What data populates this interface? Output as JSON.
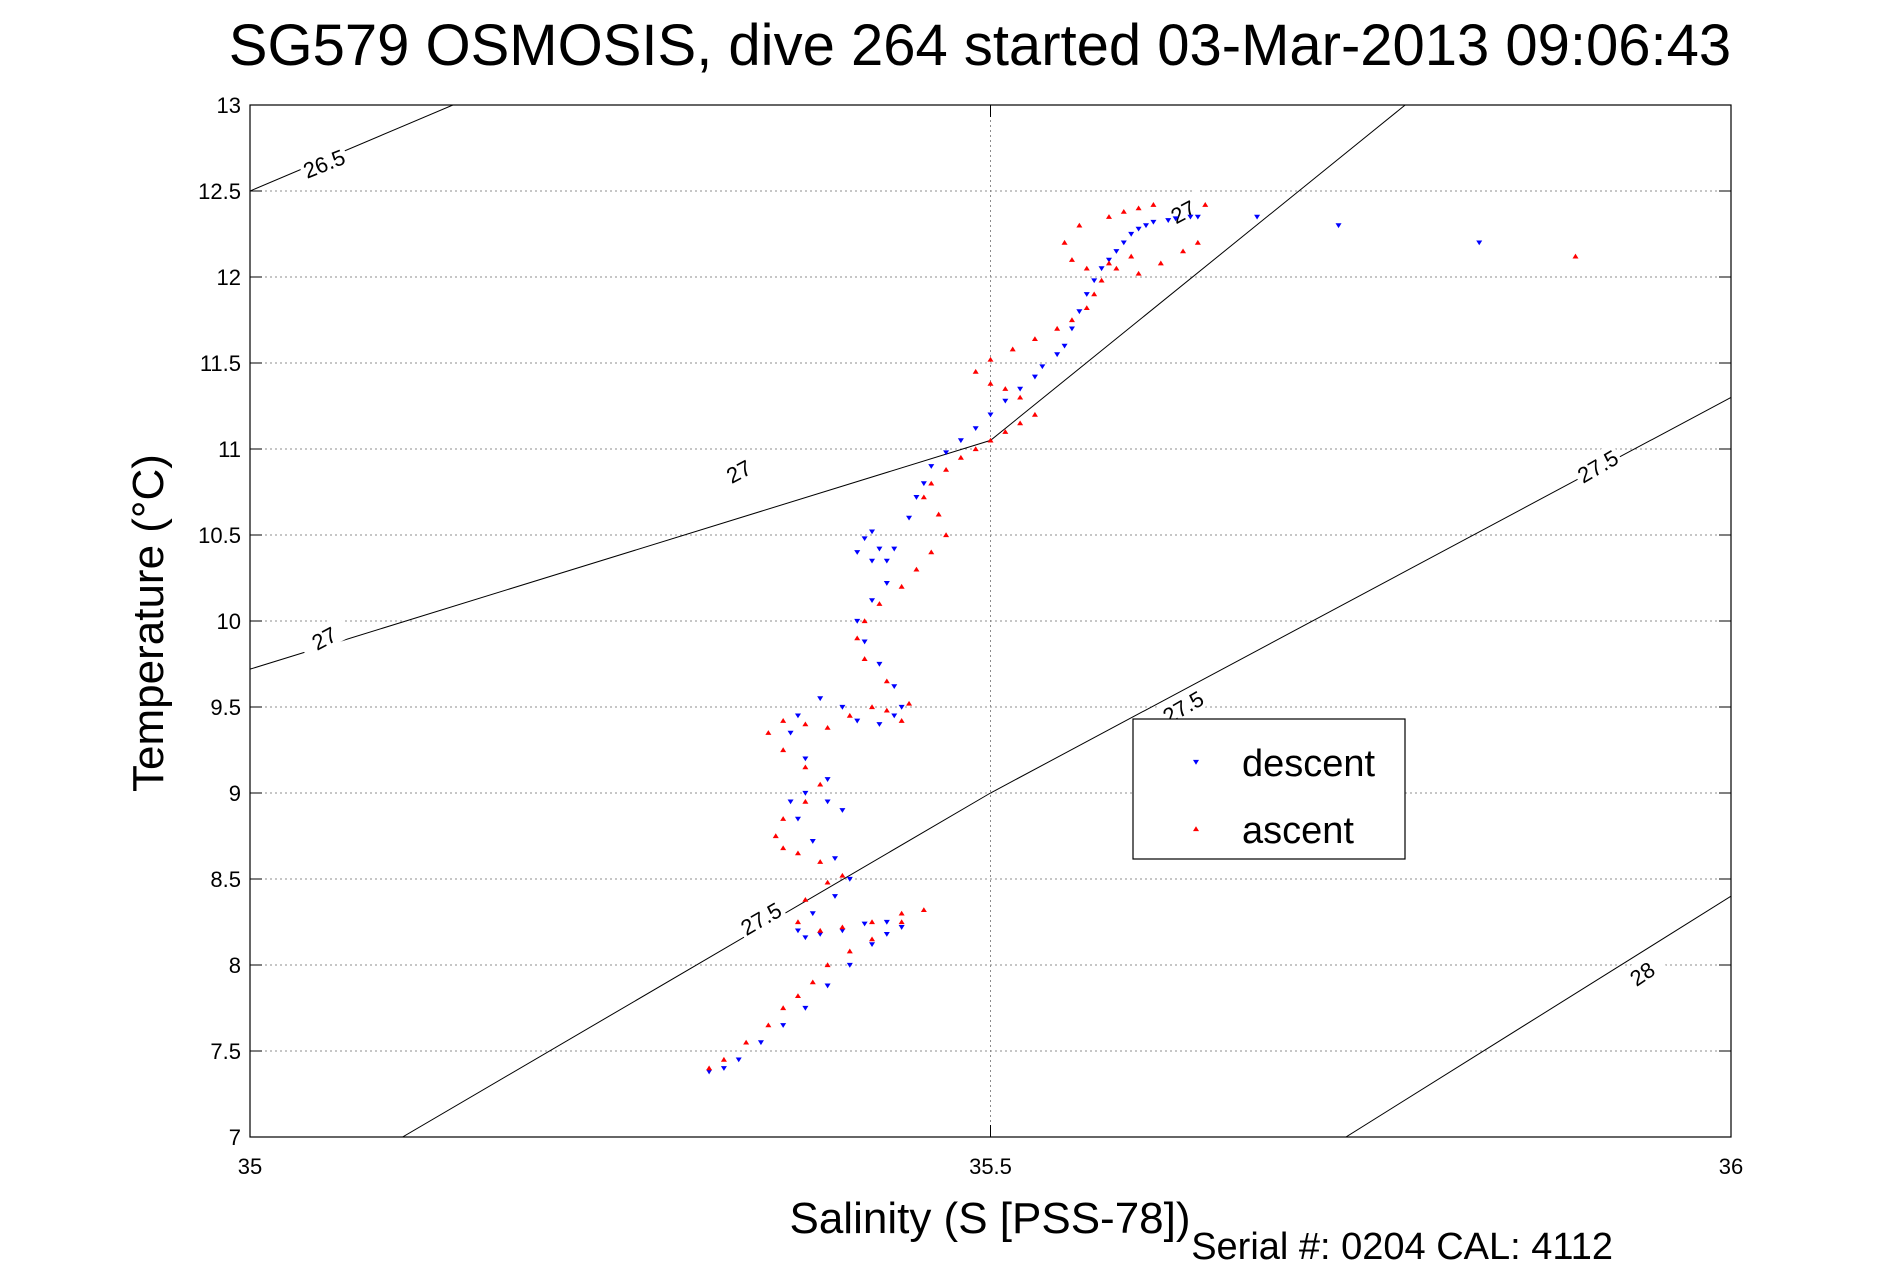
{
  "chart_data": {
    "type": "scatter",
    "title": "SG579 OSMOSIS, dive 264 started 03-Mar-2013 09:06:43",
    "xlabel": "Salinity (S [PSS-78])",
    "ylabel": "Temperature (°C)",
    "xlim": [
      35,
      36
    ],
    "ylim": [
      7,
      13
    ],
    "xticks": [
      "35",
      "35.5",
      "36"
    ],
    "yticks": [
      "7",
      "7.5",
      "8",
      "8.5",
      "9",
      "9.5",
      "10",
      "10.5",
      "11",
      "11.5",
      "12",
      "12.5",
      "13"
    ],
    "grid": true,
    "legend_position": "inside-right",
    "footer": "Serial #: 0204  CAL: 4112",
    "density_contours": [
      {
        "level": 26.5,
        "points": [
          [
            35.0,
            12.5
          ],
          [
            35.137,
            13.0
          ]
        ],
        "labels": [
          {
            "text": "26.5",
            "at": [
              35.05,
              12.66
            ],
            "angle": -22
          }
        ]
      },
      {
        "level": 27,
        "points": [
          [
            35.0,
            9.72
          ],
          [
            35.5,
            11.05
          ],
          [
            35.78,
            13.0
          ]
        ],
        "labels": [
          {
            "text": "27",
            "at": [
              35.05,
              9.9
            ],
            "angle": -28
          },
          {
            "text": "27",
            "at": [
              35.33,
              10.87
            ],
            "angle": -28
          },
          {
            "text": "27",
            "at": [
              35.63,
              12.38
            ],
            "angle": -28
          }
        ]
      },
      {
        "level": 27.5,
        "points": [
          [
            35.103,
            7.0
          ],
          [
            35.5,
            9.0
          ],
          [
            36.0,
            11.3
          ]
        ],
        "labels": [
          {
            "text": "27.5",
            "at": [
              35.345,
              8.27
            ],
            "angle": -30
          },
          {
            "text": "27.5",
            "at": [
              35.63,
              9.5
            ],
            "angle": -30
          },
          {
            "text": "27.5",
            "at": [
              35.91,
              10.9
            ],
            "angle": -30
          }
        ]
      },
      {
        "level": 28,
        "points": [
          [
            35.74,
            7.0
          ],
          [
            36.0,
            8.4
          ]
        ],
        "labels": [
          {
            "text": "28",
            "at": [
              35.94,
              7.95
            ],
            "angle": -34
          }
        ]
      }
    ],
    "series": [
      {
        "name": "descent",
        "color": "#0000ff",
        "marker": "triangle-down",
        "x": [
          35.31,
          35.32,
          35.33,
          35.345,
          35.36,
          35.375,
          35.39,
          35.405,
          35.42,
          35.43,
          35.44,
          35.43,
          35.415,
          35.4,
          35.385,
          35.375,
          35.37,
          35.38,
          35.395,
          35.405,
          35.395,
          35.38,
          35.37,
          35.365,
          35.375,
          35.39,
          35.4,
          35.39,
          35.375,
          35.365,
          35.37,
          35.385,
          35.4,
          35.41,
          35.425,
          35.435,
          35.44,
          35.435,
          35.425,
          35.415,
          35.41,
          35.42,
          35.43,
          35.43,
          35.425,
          35.42,
          35.415,
          35.41,
          35.42,
          35.435,
          35.445,
          35.45,
          35.455,
          35.46,
          35.47,
          35.48,
          35.49,
          35.5,
          35.51,
          35.52,
          35.53,
          35.535,
          35.545,
          35.55,
          35.555,
          35.56,
          35.565,
          35.57,
          35.575,
          35.58,
          35.585,
          35.59,
          35.595,
          35.6,
          35.605,
          35.61,
          35.62,
          35.625,
          35.635,
          35.64,
          35.68,
          35.735,
          35.83
        ],
        "y": [
          7.38,
          7.4,
          7.45,
          7.55,
          7.65,
          7.75,
          7.88,
          8.0,
          8.12,
          8.18,
          8.22,
          8.25,
          8.24,
          8.2,
          8.18,
          8.16,
          8.2,
          8.3,
          8.4,
          8.5,
          8.62,
          8.72,
          8.85,
          8.95,
          9.0,
          8.95,
          8.9,
          9.08,
          9.2,
          9.35,
          9.45,
          9.55,
          9.5,
          9.42,
          9.4,
          9.45,
          9.5,
          9.62,
          9.75,
          9.88,
          10.0,
          10.12,
          10.22,
          10.35,
          10.42,
          10.52,
          10.48,
          10.4,
          10.35,
          10.42,
          10.6,
          10.72,
          10.8,
          10.9,
          10.98,
          11.05,
          11.12,
          11.2,
          11.28,
          11.35,
          11.42,
          11.48,
          11.55,
          11.6,
          11.7,
          11.8,
          11.9,
          11.98,
          12.05,
          12.1,
          12.15,
          12.2,
          12.25,
          12.28,
          12.3,
          12.32,
          12.33,
          12.34,
          12.35,
          12.35,
          12.35,
          12.3,
          12.2
        ]
      },
      {
        "name": "ascent",
        "color": "#ff0000",
        "marker": "triangle-up",
        "x": [
          35.31,
          35.32,
          35.335,
          35.35,
          35.36,
          35.37,
          35.38,
          35.39,
          35.405,
          35.42,
          35.44,
          35.455,
          35.44,
          35.42,
          35.4,
          35.385,
          35.37,
          35.375,
          35.39,
          35.4,
          35.385,
          35.37,
          35.36,
          35.355,
          35.36,
          35.375,
          35.385,
          35.375,
          35.36,
          35.35,
          35.36,
          35.375,
          35.39,
          35.405,
          35.42,
          35.43,
          35.44,
          35.445,
          35.43,
          35.415,
          35.41,
          35.415,
          35.425,
          35.44,
          35.45,
          35.46,
          35.47,
          35.465,
          35.455,
          35.46,
          35.47,
          35.48,
          35.49,
          35.5,
          35.51,
          35.52,
          35.53,
          35.52,
          35.51,
          35.5,
          35.49,
          35.5,
          35.515,
          35.53,
          35.545,
          35.555,
          35.565,
          35.57,
          35.575,
          35.565,
          35.555,
          35.55,
          35.56,
          35.58,
          35.59,
          35.6,
          35.61,
          35.595,
          35.58,
          35.585,
          35.6,
          35.615,
          35.63,
          35.64,
          35.645,
          35.895
        ],
        "y": [
          7.4,
          7.45,
          7.55,
          7.65,
          7.75,
          7.82,
          7.9,
          8.0,
          8.08,
          8.15,
          8.25,
          8.32,
          8.3,
          8.25,
          8.22,
          8.2,
          8.25,
          8.38,
          8.48,
          8.52,
          8.6,
          8.65,
          8.68,
          8.75,
          8.85,
          8.95,
          9.05,
          9.15,
          9.25,
          9.35,
          9.42,
          9.4,
          9.38,
          9.45,
          9.5,
          9.48,
          9.42,
          9.52,
          9.65,
          9.78,
          9.9,
          10.0,
          10.1,
          10.2,
          10.3,
          10.4,
          10.5,
          10.62,
          10.72,
          10.8,
          10.88,
          10.95,
          11.0,
          11.05,
          11.1,
          11.15,
          11.2,
          11.3,
          11.35,
          11.38,
          11.45,
          11.52,
          11.58,
          11.64,
          11.7,
          11.75,
          11.82,
          11.9,
          11.98,
          12.05,
          12.1,
          12.2,
          12.3,
          12.35,
          12.38,
          12.4,
          12.42,
          12.12,
          12.08,
          12.05,
          12.02,
          12.08,
          12.15,
          12.2,
          12.42,
          12.12
        ]
      }
    ]
  }
}
